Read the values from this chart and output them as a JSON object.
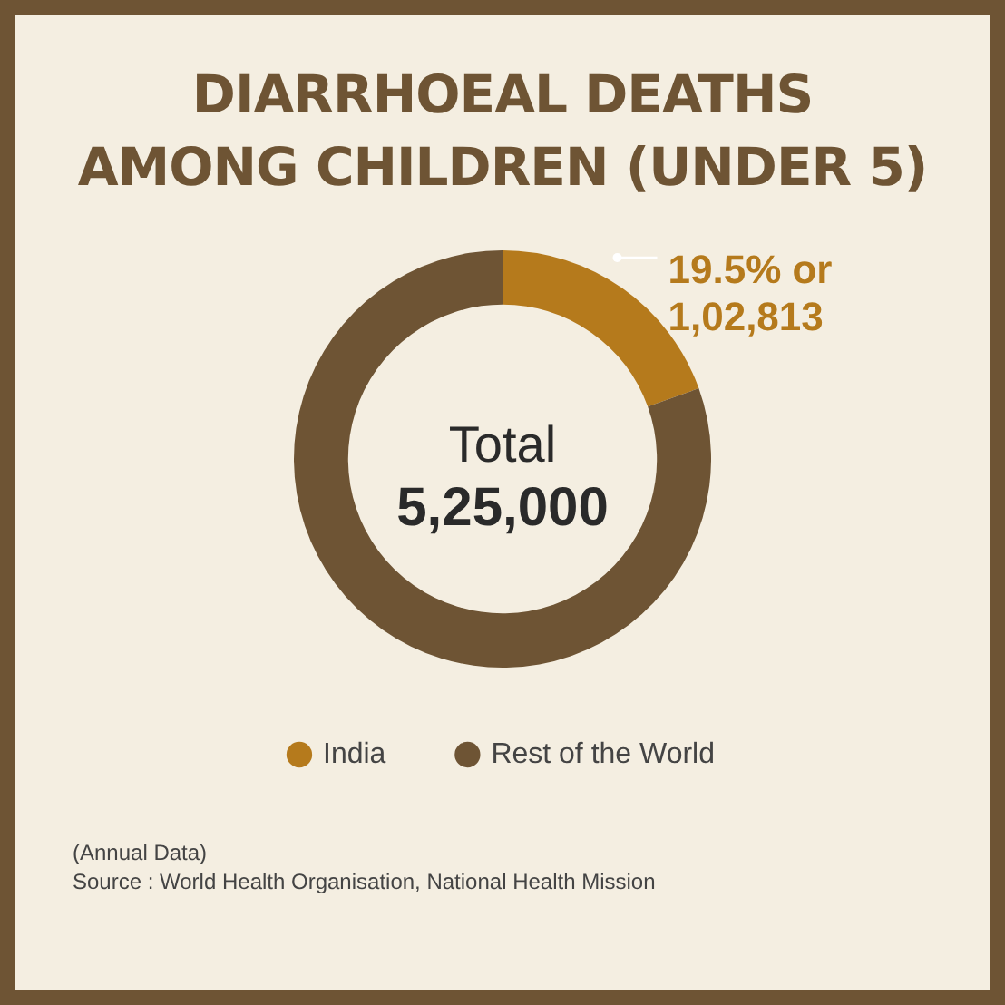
{
  "chart_data": {
    "type": "donut",
    "title": "DIARRHOEAL DEATHS\nAMONG CHILDREN (UNDER 5)",
    "categories": [
      "India",
      "Rest of the World"
    ],
    "values": [
      19.5,
      80.5
    ],
    "colors": [
      "#b57a1c",
      "#6e5434"
    ],
    "value_labels": [
      "19.5% or\n1,02,813",
      null
    ],
    "legend": "bottom",
    "annotations": [
      "Total\n5,25,000",
      "(Annual Data)",
      "Source : World Health Organisation, National Health Mission"
    ]
  }
}
